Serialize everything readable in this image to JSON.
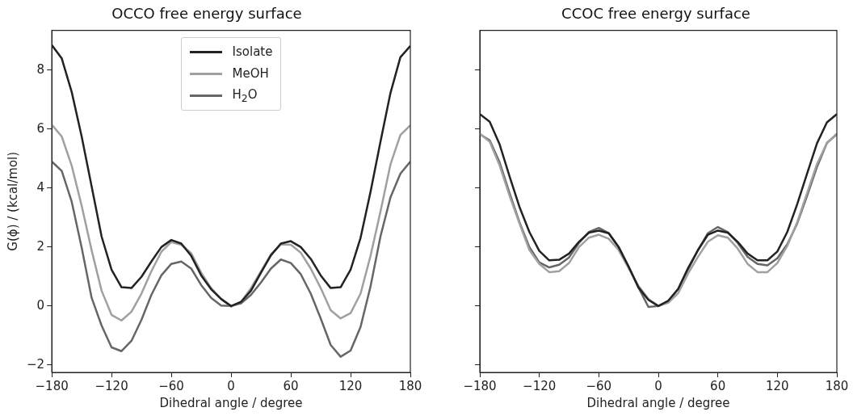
{
  "chart_data": [
    {
      "type": "line",
      "title": "OCCO free energy surface",
      "xlabel": "Dihedral angle / degree",
      "ylabel": "G(ϕ) / (kcal/mol)",
      "x": [
        -180,
        -170,
        -160,
        -150,
        -140,
        -130,
        -120,
        -110,
        -100,
        -90,
        -80,
        -70,
        -60,
        -50,
        -40,
        -30,
        -20,
        -10,
        0,
        10,
        20,
        30,
        40,
        50,
        60,
        70,
        80,
        90,
        100,
        110,
        120,
        130,
        140,
        150,
        160,
        170,
        180
      ],
      "series": [
        {
          "name": "Isolate",
          "color": "#222222",
          "values": [
            8.85,
            8.4,
            7.26,
            5.75,
            4.06,
            2.36,
            1.23,
            0.64,
            0.61,
            0.99,
            1.51,
            2.0,
            2.24,
            2.12,
            1.7,
            1.04,
            0.57,
            0.24,
            0,
            0.14,
            0.52,
            1.13,
            1.72,
            2.12,
            2.2,
            2.0,
            1.6,
            1.04,
            0.61,
            0.64,
            1.23,
            2.31,
            3.87,
            5.57,
            7.22,
            8.44,
            8.82
          ]
        },
        {
          "name": "MeOH",
          "color": "#a0a0a0",
          "values": [
            6.15,
            5.75,
            4.76,
            3.4,
            1.89,
            0.52,
            -0.3,
            -0.49,
            -0.19,
            0.42,
            1.18,
            1.84,
            2.17,
            2.08,
            1.79,
            1.13,
            0.61,
            0.24,
            -0.02,
            0.14,
            0.61,
            1.18,
            1.75,
            2.09,
            2.08,
            1.81,
            1.27,
            0.61,
            -0.14,
            -0.42,
            -0.24,
            0.42,
            1.7,
            3.2,
            4.8,
            5.8,
            6.13
          ]
        },
        {
          "name": "H$_{2}$O",
          "color": "#666666",
          "values": [
            4.9,
            4.58,
            3.54,
            1.98,
            0.28,
            -0.66,
            -1.4,
            -1.53,
            -1.18,
            -0.47,
            0.38,
            1.04,
            1.43,
            1.51,
            1.27,
            0.71,
            0.28,
            0.02,
            0,
            0.09,
            0.38,
            0.8,
            1.27,
            1.58,
            1.46,
            1.08,
            0.42,
            -0.42,
            -1.32,
            -1.72,
            -1.51,
            -0.71,
            0.66,
            2.36,
            3.68,
            4.49,
            4.9
          ]
        }
      ],
      "xlim": [
        -180,
        180
      ],
      "xticks": [
        -180,
        -120,
        -60,
        0,
        60,
        120,
        180
      ],
      "ylim": [
        -2.25,
        9.35
      ],
      "yticks": [
        -2,
        0,
        2,
        4,
        6,
        8
      ],
      "legend": "top",
      "grid": false
    },
    {
      "type": "line",
      "title": "CCOC free energy surface",
      "xlabel": "Dihedral angle / degree",
      "x": [
        -180,
        -170,
        -160,
        -150,
        -140,
        -130,
        -120,
        -110,
        -100,
        -90,
        -80,
        -70,
        -60,
        -50,
        -40,
        -30,
        -20,
        -10,
        0,
        10,
        20,
        30,
        40,
        50,
        60,
        70,
        80,
        90,
        100,
        110,
        120,
        130,
        140,
        150,
        160,
        170,
        180
      ],
      "series": [
        {
          "color": "#222222",
          "values": [
            6.51,
            6.25,
            5.48,
            4.4,
            3.36,
            2.51,
            1.87,
            1.55,
            1.57,
            1.78,
            2.18,
            2.49,
            2.56,
            2.47,
            2.0,
            1.34,
            0.63,
            0.21,
            0,
            0.18,
            0.58,
            1.29,
            1.9,
            2.42,
            2.56,
            2.49,
            2.18,
            1.78,
            1.55,
            1.55,
            1.85,
            2.51,
            3.45,
            4.49,
            5.52,
            6.23,
            6.51
          ]
        },
        {
          "color": "#a0a0a0",
          "values": [
            5.85,
            5.57,
            4.77,
            3.74,
            2.8,
            1.9,
            1.43,
            1.15,
            1.18,
            1.46,
            2.0,
            2.32,
            2.42,
            2.28,
            1.9,
            1.29,
            0.68,
            0.24,
            0,
            0.11,
            0.44,
            1.1,
            1.67,
            2.18,
            2.4,
            2.32,
            1.95,
            1.43,
            1.15,
            1.15,
            1.46,
            2.04,
            2.84,
            3.83,
            4.82,
            5.53,
            5.85
          ]
        },
        {
          "color": "#666666",
          "values": [
            5.83,
            5.62,
            4.87,
            3.83,
            2.84,
            2.0,
            1.48,
            1.31,
            1.4,
            1.65,
            2.14,
            2.51,
            2.65,
            2.47,
            2.0,
            1.34,
            0.63,
            -0.03,
            0,
            0.16,
            0.58,
            1.24,
            1.9,
            2.47,
            2.68,
            2.51,
            2.14,
            1.67,
            1.43,
            1.38,
            1.62,
            2.09,
            2.8,
            3.74,
            4.72,
            5.53,
            5.83
          ]
        }
      ],
      "xlim": [
        -180,
        180
      ],
      "xticks": [
        -180,
        -120,
        -60,
        0,
        60,
        120,
        180
      ],
      "ylim": [
        -2.25,
        9.35
      ],
      "yticks": [
        -2,
        0,
        2,
        4,
        6,
        8
      ],
      "tick_labels": "x",
      "grid": false
    }
  ]
}
